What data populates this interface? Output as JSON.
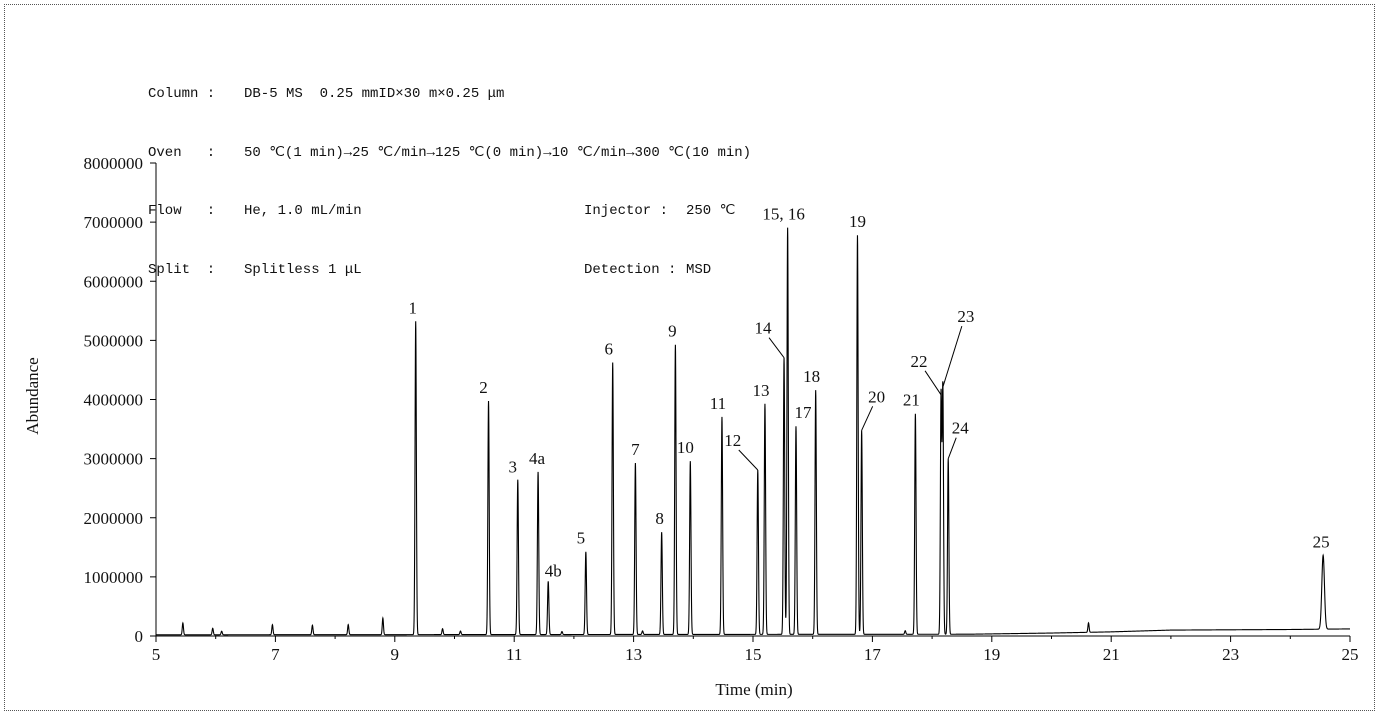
{
  "conditions": {
    "column_label": "Column :",
    "column_value": "DB-5 MS  0.25 mmID×30 m×0.25 μm",
    "oven_label": "Oven   :",
    "oven_value": "50 ℃(1 min)→25 ℃/min→125 ℃(0 min)→10 ℃/min→300 ℃(10 min)",
    "flow_label": "Flow   :",
    "flow_value": "He, 1.0 mL/min",
    "injector_label": "Injector :",
    "injector_value": "250 ℃",
    "split_label": "Split  :",
    "split_value": "Splitless 1 μL",
    "detection_label": "Detection :",
    "detection_value": "MSD"
  },
  "chart_data": {
    "type": "line",
    "xlabel": "Time (min)",
    "ylabel": "Abundance",
    "xlim": [
      5,
      25
    ],
    "ylim": [
      0,
      8000000
    ],
    "xticks": [
      5,
      7,
      9,
      11,
      13,
      15,
      17,
      19,
      21,
      23,
      25
    ],
    "yticks": [
      0,
      1000000,
      2000000,
      3000000,
      4000000,
      5000000,
      6000000,
      7000000,
      8000000
    ],
    "grid": false,
    "line_color": "#000000",
    "peaks": [
      {
        "label": "1",
        "rt": 9.35,
        "height": 5300000
      },
      {
        "label": "2",
        "rt": 10.57,
        "height": 3950000
      },
      {
        "label": "3",
        "rt": 11.06,
        "height": 2620000
      },
      {
        "label": "4a",
        "rt": 11.4,
        "height": 2750000
      },
      {
        "label": "4b",
        "rt": 11.57,
        "height": 900000
      },
      {
        "label": "5",
        "rt": 12.2,
        "height": 1400000
      },
      {
        "label": "6",
        "rt": 12.65,
        "height": 4600000
      },
      {
        "label": "7",
        "rt": 13.03,
        "height": 2900000
      },
      {
        "label": "8",
        "rt": 13.47,
        "height": 1730000
      },
      {
        "label": "9",
        "rt": 13.7,
        "height": 4900000
      },
      {
        "label": "10",
        "rt": 13.95,
        "height": 2930000
      },
      {
        "label": "11",
        "rt": 14.48,
        "height": 3680000
      },
      {
        "label": "12",
        "rt": 15.08,
        "height": 2780000
      },
      {
        "label": "13",
        "rt": 15.2,
        "height": 3900000
      },
      {
        "label": "14",
        "rt": 15.52,
        "height": 4680000
      },
      {
        "label": "15, 16",
        "rt": 15.58,
        "height": 6880000
      },
      {
        "label": "17",
        "rt": 15.72,
        "height": 3520000
      },
      {
        "label": "18",
        "rt": 16.05,
        "height": 4130000
      },
      {
        "label": "19",
        "rt": 16.75,
        "height": 6750000
      },
      {
        "label": "20",
        "rt": 16.82,
        "height": 3450000
      },
      {
        "label": "21",
        "rt": 17.72,
        "height": 3730000
      },
      {
        "label": "22",
        "rt": 18.15,
        "height": 4050000
      },
      {
        "label": "23",
        "rt": 18.18,
        "height": 4180000
      },
      {
        "label": "24",
        "rt": 18.27,
        "height": 2970000
      },
      {
        "label": "25",
        "rt": 24.55,
        "height": 1250000
      }
    ],
    "minor_peaks": [
      {
        "rt": 5.45,
        "height": 200000
      },
      {
        "rt": 5.95,
        "height": 110000
      },
      {
        "rt": 6.1,
        "height": 60000
      },
      {
        "rt": 6.95,
        "height": 170000
      },
      {
        "rt": 7.62,
        "height": 160000
      },
      {
        "rt": 8.22,
        "height": 170000
      },
      {
        "rt": 8.8,
        "height": 280000
      },
      {
        "rt": 9.8,
        "height": 100000
      },
      {
        "rt": 10.1,
        "height": 60000
      },
      {
        "rt": 11.8,
        "height": 50000
      },
      {
        "rt": 13.15,
        "height": 60000
      },
      {
        "rt": 17.55,
        "height": 60000
      },
      {
        "rt": 20.62,
        "height": 160000
      }
    ],
    "baseline": [
      {
        "x": 5,
        "y": 20000
      },
      {
        "x": 18.6,
        "y": 30000
      },
      {
        "x": 20,
        "y": 50000
      },
      {
        "x": 21,
        "y": 70000
      },
      {
        "x": 22,
        "y": 100000
      },
      {
        "x": 24,
        "y": 110000
      },
      {
        "x": 25,
        "y": 120000
      }
    ]
  }
}
